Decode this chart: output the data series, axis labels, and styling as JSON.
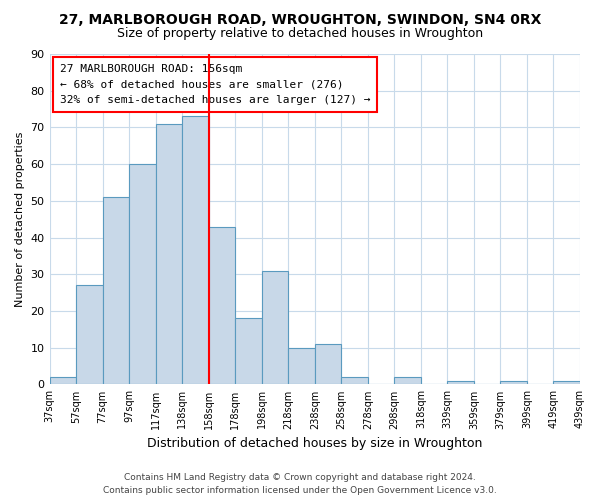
{
  "title": "27, MARLBOROUGH ROAD, WROUGHTON, SWINDON, SN4 0RX",
  "subtitle": "Size of property relative to detached houses in Wroughton",
  "xlabel": "Distribution of detached houses by size in Wroughton",
  "ylabel": "Number of detached properties",
  "bin_labels": [
    "37sqm",
    "57sqm",
    "77sqm",
    "97sqm",
    "117sqm",
    "138sqm",
    "158sqm",
    "178sqm",
    "198sqm",
    "218sqm",
    "238sqm",
    "258sqm",
    "278sqm",
    "298sqm",
    "318sqm",
    "339sqm",
    "359sqm",
    "379sqm",
    "399sqm",
    "419sqm",
    "439sqm"
  ],
  "bar_heights": [
    2,
    27,
    51,
    60,
    71,
    73,
    43,
    18,
    31,
    10,
    11,
    2,
    0,
    2,
    0,
    1,
    0,
    1,
    0,
    1
  ],
  "bar_color": "#c8d8e8",
  "bar_edge_color": "#5a9abf",
  "highlight_line_color": "red",
  "ylim": [
    0,
    90
  ],
  "yticks": [
    0,
    10,
    20,
    30,
    40,
    50,
    60,
    70,
    80,
    90
  ],
  "annotation_title": "27 MARLBOROUGH ROAD: 156sqm",
  "annotation_line1": "← 68% of detached houses are smaller (276)",
  "annotation_line2": "32% of semi-detached houses are larger (127) →",
  "footer_line1": "Contains HM Land Registry data © Crown copyright and database right 2024.",
  "footer_line2": "Contains public sector information licensed under the Open Government Licence v3.0.",
  "bg_color": "#ffffff",
  "grid_color": "#c8daea"
}
